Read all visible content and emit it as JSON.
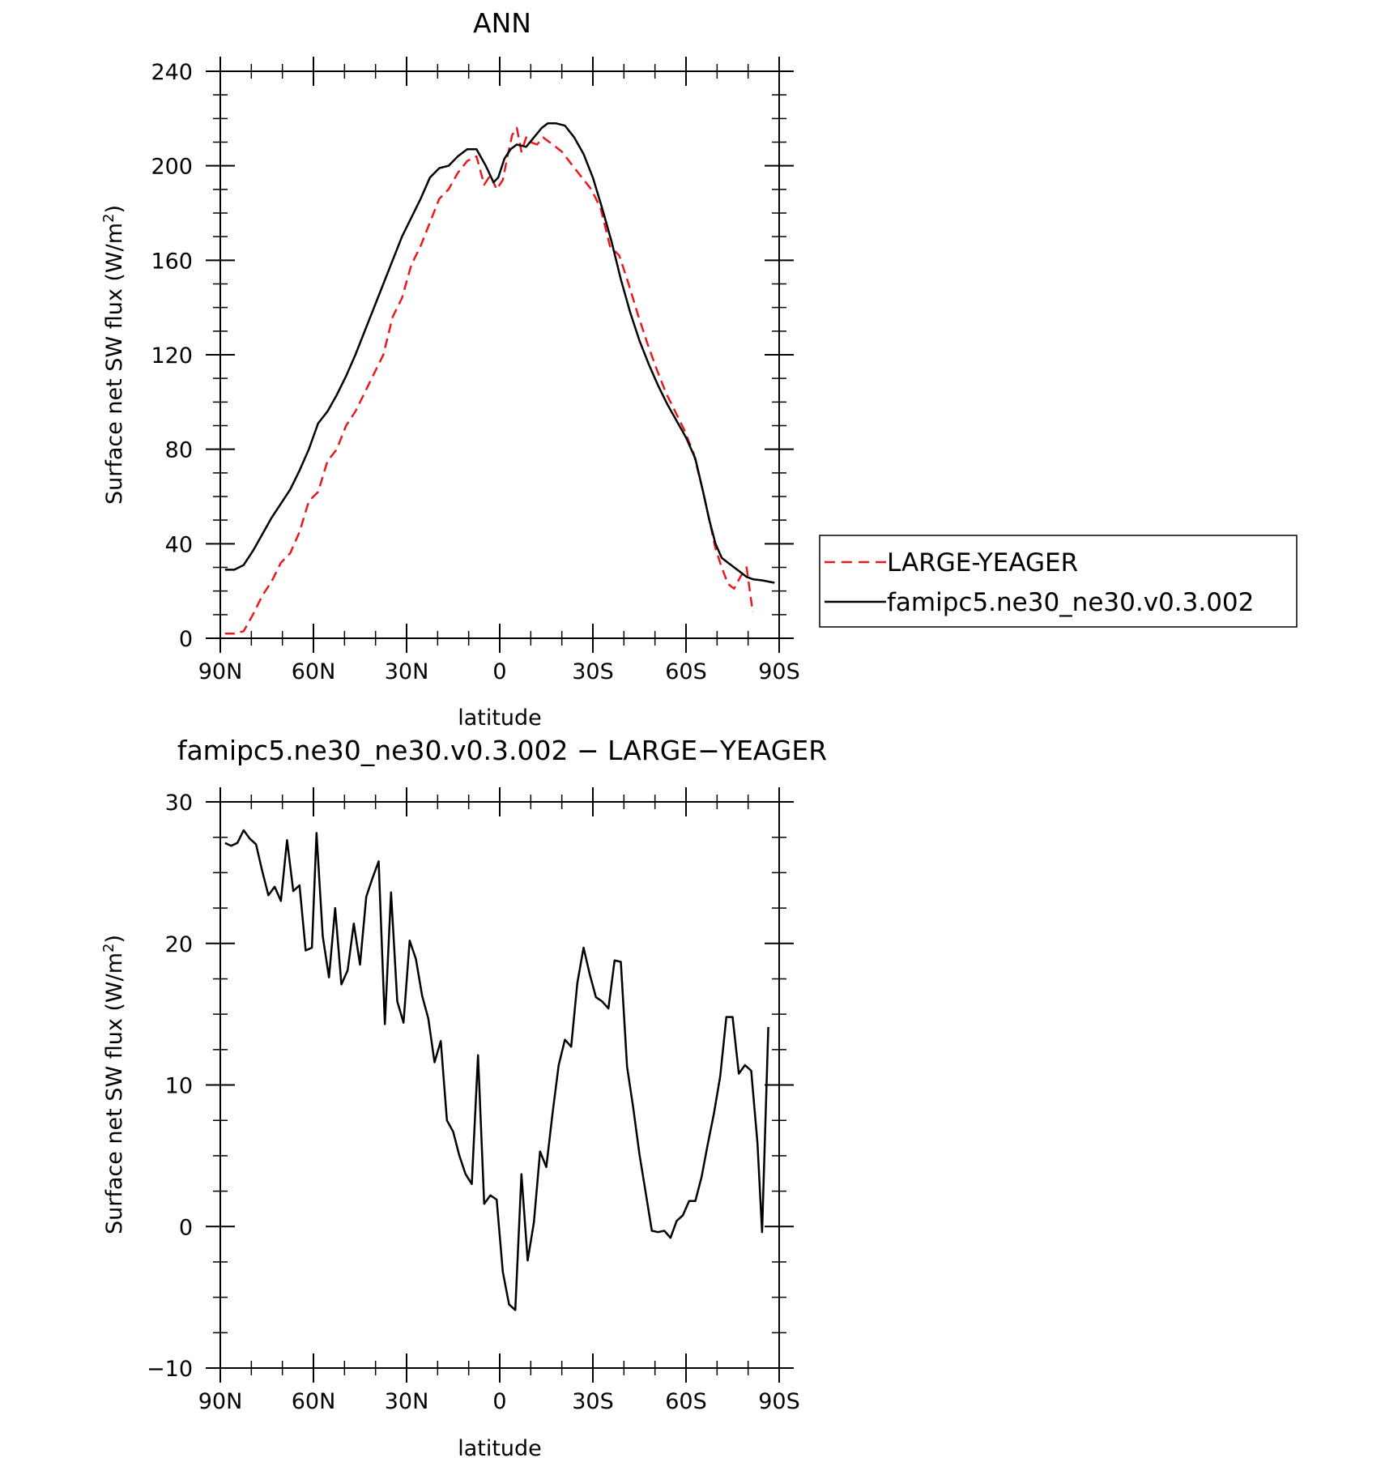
{
  "chart_data": [
    {
      "type": "line",
      "title": "ANN",
      "xlabel": "latitude",
      "ylabel": "Surface net SW flux (W/m",
      "ylabel_sup": "2",
      "ylabel_close": ")",
      "xlim": [
        90,
        -90
      ],
      "ylim": [
        0,
        240
      ],
      "x_ticks": [
        90,
        60,
        30,
        0,
        -30,
        -60,
        -90
      ],
      "x_tick_labels": [
        "90N",
        "60N",
        "30N",
        "0",
        "30S",
        "60S",
        "90S"
      ],
      "y_ticks": [
        0,
        40,
        80,
        120,
        160,
        200,
        240
      ],
      "y_tick_labels": [
        "0",
        "40",
        "80",
        "120",
        "160",
        "200",
        "240"
      ],
      "legend_position": "right",
      "series": [
        {
          "name": "LARGE-YEAGER",
          "color": "#e8191c",
          "dash": "dashed",
          "points": [
            [
              88.5,
              2
            ],
            [
              85.5,
              2
            ],
            [
              82.5,
              3
            ],
            [
              79.5,
              10
            ],
            [
              76.5,
              18
            ],
            [
              73.5,
              24
            ],
            [
              70.5,
              32
            ],
            [
              67.5,
              36
            ],
            [
              64.5,
              45
            ],
            [
              61.5,
              58
            ],
            [
              58.5,
              62
            ],
            [
              55.5,
              75
            ],
            [
              52.5,
              80
            ],
            [
              49.5,
              90
            ],
            [
              46.5,
              96
            ],
            [
              43.5,
              104
            ],
            [
              40.5,
              112
            ],
            [
              37.5,
              120
            ],
            [
              34.5,
              136
            ],
            [
              31.5,
              144
            ],
            [
              28.5,
              158
            ],
            [
              25.5,
              166
            ],
            [
              22.5,
              176
            ],
            [
              19.5,
              186
            ],
            [
              16.5,
              190
            ],
            [
              13.5,
              197
            ],
            [
              10.5,
              202
            ],
            [
              7.5,
              204
            ],
            [
              5.0,
              192
            ],
            [
              3.0,
              196
            ],
            [
              1.0,
              190
            ],
            [
              -1.0,
              194
            ],
            [
              -2.5,
              204
            ],
            [
              -4.0,
              213
            ],
            [
              -5.5,
              216
            ],
            [
              -7.0,
              206
            ],
            [
              -8.5,
              212
            ],
            [
              -10.0,
              210
            ],
            [
              -12.0,
              209
            ],
            [
              -14.0,
              212
            ],
            [
              -17.0,
              209
            ],
            [
              -20.0,
              206
            ],
            [
              -23.5,
              200
            ],
            [
              -26.5,
              195
            ],
            [
              -29.5,
              190
            ],
            [
              -32.5,
              182
            ],
            [
              -35.5,
              166
            ],
            [
              -38.5,
              162
            ],
            [
              -41.5,
              150
            ],
            [
              -44.5,
              137
            ],
            [
              -47.5,
              125
            ],
            [
              -50.5,
              114
            ],
            [
              -53.5,
              104
            ],
            [
              -56.5,
              96
            ],
            [
              -59.5,
              88
            ],
            [
              -62.5,
              78
            ],
            [
              -65.5,
              62
            ],
            [
              -67.5,
              50
            ],
            [
              -69.5,
              38
            ],
            [
              -71.5,
              30
            ],
            [
              -73.5,
              23
            ],
            [
              -75.5,
              21
            ],
            [
              -77.5,
              26
            ],
            [
              -79.5,
              30
            ],
            [
              -81.5,
              11
            ]
          ]
        },
        {
          "name": "famipc5.ne30_ne30.v0.3.002",
          "color": "#000000",
          "dash": "solid",
          "points": [
            [
              88.5,
              29
            ],
            [
              85.5,
              29
            ],
            [
              82.5,
              31
            ],
            [
              79.5,
              37
            ],
            [
              76.5,
              44
            ],
            [
              73.5,
              51
            ],
            [
              70.5,
              57
            ],
            [
              67.5,
              63
            ],
            [
              64.5,
              71
            ],
            [
              61.5,
              80
            ],
            [
              58.5,
              91
            ],
            [
              55.5,
              96
            ],
            [
              52.5,
              103
            ],
            [
              49.5,
              111
            ],
            [
              46.5,
              120
            ],
            [
              43.5,
              130
            ],
            [
              40.5,
              140
            ],
            [
              37.5,
              150
            ],
            [
              34.5,
              160
            ],
            [
              31.5,
              170
            ],
            [
              28.5,
              178
            ],
            [
              25.5,
              186
            ],
            [
              22.5,
              195
            ],
            [
              19.5,
              199
            ],
            [
              16.5,
              200
            ],
            [
              13.5,
              204
            ],
            [
              10.5,
              207
            ],
            [
              7.5,
              207
            ],
            [
              4.5,
              200
            ],
            [
              2.0,
              193
            ],
            [
              0.5,
              195
            ],
            [
              -1.5,
              203
            ],
            [
              -3.5,
              207
            ],
            [
              -5.5,
              209
            ],
            [
              -8.5,
              208
            ],
            [
              -11.0,
              212
            ],
            [
              -13.5,
              216
            ],
            [
              -15.5,
              218
            ],
            [
              -18.0,
              218
            ],
            [
              -21.0,
              217
            ],
            [
              -24.0,
              212
            ],
            [
              -27.0,
              205
            ],
            [
              -30.0,
              195
            ],
            [
              -33.0,
              182
            ],
            [
              -36.0,
              168
            ],
            [
              -39.0,
              152
            ],
            [
              -42.0,
              138
            ],
            [
              -45.0,
              126
            ],
            [
              -48.0,
              116
            ],
            [
              -51.0,
              107
            ],
            [
              -54.0,
              99
            ],
            [
              -57.0,
              92
            ],
            [
              -60.0,
              85
            ],
            [
              -63.0,
              76
            ],
            [
              -65.5,
              62
            ],
            [
              -67.5,
              50
            ],
            [
              -69.5,
              40
            ],
            [
              -71.5,
              34
            ],
            [
              -73.5,
              32
            ],
            [
              -75.5,
              30
            ],
            [
              -77.5,
              28
            ],
            [
              -79.5,
              26
            ],
            [
              -81.5,
              25
            ],
            [
              -84.5,
              24.5
            ],
            [
              -88.5,
              23.5
            ]
          ]
        }
      ]
    },
    {
      "type": "line",
      "title": "famipc5.ne30_ne30.v0.3.002 − LARGE−YEAGER",
      "xlabel": "latitude",
      "ylabel": "Surface net SW flux (W/m",
      "ylabel_sup": "2",
      "ylabel_close": ")",
      "xlim": [
        90,
        -90
      ],
      "ylim": [
        -10,
        30
      ],
      "x_ticks": [
        90,
        60,
        30,
        0,
        -30,
        -60,
        -90
      ],
      "x_tick_labels": [
        "90N",
        "60N",
        "30N",
        "0",
        "30S",
        "60S",
        "90S"
      ],
      "y_ticks": [
        -10,
        0,
        10,
        20,
        30
      ],
      "y_tick_labels": [
        "−10",
        "0",
        "10",
        "20",
        "30"
      ],
      "series": [
        {
          "color": "#000000",
          "dash": "solid",
          "points": [
            [
              88.5,
              27.1
            ],
            [
              86.5,
              26.9
            ],
            [
              84.5,
              27.1
            ],
            [
              82.5,
              28.0
            ],
            [
              80.5,
              27.4
            ],
            [
              78.5,
              27.0
            ],
            [
              76.5,
              25.1
            ],
            [
              74.5,
              23.4
            ],
            [
              72.5,
              24.0
            ],
            [
              70.5,
              23.0
            ],
            [
              68.5,
              27.3
            ],
            [
              66.5,
              23.7
            ],
            [
              64.5,
              24.1
            ],
            [
              62.5,
              19.5
            ],
            [
              60.5,
              19.7
            ],
            [
              59.0,
              27.8
            ],
            [
              57.0,
              20.5
            ],
            [
              55.0,
              17.6
            ],
            [
              53.0,
              22.5
            ],
            [
              51.0,
              17.1
            ],
            [
              49.0,
              18.1
            ],
            [
              47.0,
              21.4
            ],
            [
              45.0,
              18.5
            ],
            [
              43.0,
              23.3
            ],
            [
              41.0,
              24.6
            ],
            [
              39.0,
              25.8
            ],
            [
              37.0,
              14.3
            ],
            [
              35.0,
              23.6
            ],
            [
              33.0,
              15.9
            ],
            [
              31.0,
              14.4
            ],
            [
              29.0,
              20.2
            ],
            [
              27.0,
              18.9
            ],
            [
              25.0,
              16.3
            ],
            [
              23.0,
              14.7
            ],
            [
              21.0,
              11.6
            ],
            [
              19.0,
              13.1
            ],
            [
              17.0,
              7.5
            ],
            [
              15.0,
              6.7
            ],
            [
              13.0,
              5.0
            ],
            [
              11.0,
              3.7
            ],
            [
              9.0,
              3.0
            ],
            [
              7.0,
              12.1
            ],
            [
              5.0,
              1.6
            ],
            [
              3.0,
              2.2
            ],
            [
              1.0,
              1.9
            ],
            [
              -1.0,
              -3.2
            ],
            [
              -3.0,
              -5.5
            ],
            [
              -5.0,
              -5.9
            ],
            [
              -7.0,
              3.7
            ],
            [
              -9.0,
              -2.4
            ],
            [
              -11.0,
              0.3
            ],
            [
              -13.0,
              5.3
            ],
            [
              -15.0,
              4.2
            ],
            [
              -17.0,
              8.0
            ],
            [
              -19.0,
              11.4
            ],
            [
              -21.0,
              13.2
            ],
            [
              -23.0,
              12.7
            ],
            [
              -25.0,
              17.2
            ],
            [
              -27.0,
              19.7
            ],
            [
              -29.0,
              17.8
            ],
            [
              -31.0,
              16.2
            ],
            [
              -33.0,
              15.9
            ],
            [
              -35.0,
              15.4
            ],
            [
              -37.0,
              18.8
            ],
            [
              -39.0,
              18.7
            ],
            [
              -41.0,
              11.3
            ],
            [
              -43.0,
              8.4
            ],
            [
              -45.0,
              5.1
            ],
            [
              -47.0,
              2.4
            ],
            [
              -49.0,
              -0.3
            ],
            [
              -51.0,
              -0.4
            ],
            [
              -53.0,
              -0.3
            ],
            [
              -55.0,
              -0.8
            ],
            [
              -57.0,
              0.4
            ],
            [
              -59.0,
              0.8
            ],
            [
              -61.0,
              1.8
            ],
            [
              -63.0,
              1.8
            ],
            [
              -65.0,
              3.5
            ],
            [
              -67.0,
              5.8
            ],
            [
              -69.0,
              8.0
            ],
            [
              -71.0,
              10.6
            ],
            [
              -73.0,
              14.8
            ],
            [
              -75.0,
              14.8
            ],
            [
              -77.0,
              10.8
            ],
            [
              -79.0,
              11.4
            ],
            [
              -81.0,
              11.0
            ],
            [
              -83.0,
              5.9
            ],
            [
              -84.5,
              -0.4
            ],
            [
              -86.5,
              14.1
            ]
          ]
        }
      ]
    }
  ]
}
